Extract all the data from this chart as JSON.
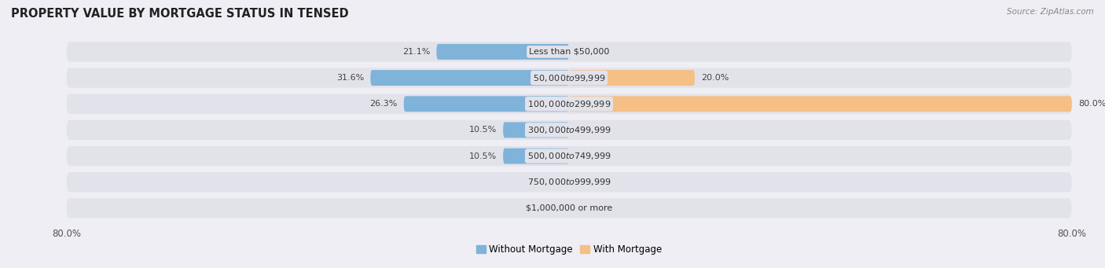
{
  "title": "PROPERTY VALUE BY MORTGAGE STATUS IN TENSED",
  "source": "Source: ZipAtlas.com",
  "categories": [
    "Less than $50,000",
    "$50,000 to $99,999",
    "$100,000 to $299,999",
    "$300,000 to $499,999",
    "$500,000 to $749,999",
    "$750,000 to $999,999",
    "$1,000,000 or more"
  ],
  "without_mortgage": [
    21.1,
    31.6,
    26.3,
    10.5,
    10.5,
    0.0,
    0.0
  ],
  "with_mortgage": [
    0.0,
    20.0,
    80.0,
    0.0,
    0.0,
    0.0,
    0.0
  ],
  "blue_color": "#7fb3d9",
  "orange_color": "#f5bf85",
  "background_color": "#eeeef4",
  "bar_bg_color": "#e2e2ea",
  "x_min": -80,
  "x_max": 80,
  "title_fontsize": 10.5,
  "label_fontsize": 8,
  "tick_fontsize": 8.5,
  "legend_fontsize": 8.5,
  "source_fontsize": 7.5
}
